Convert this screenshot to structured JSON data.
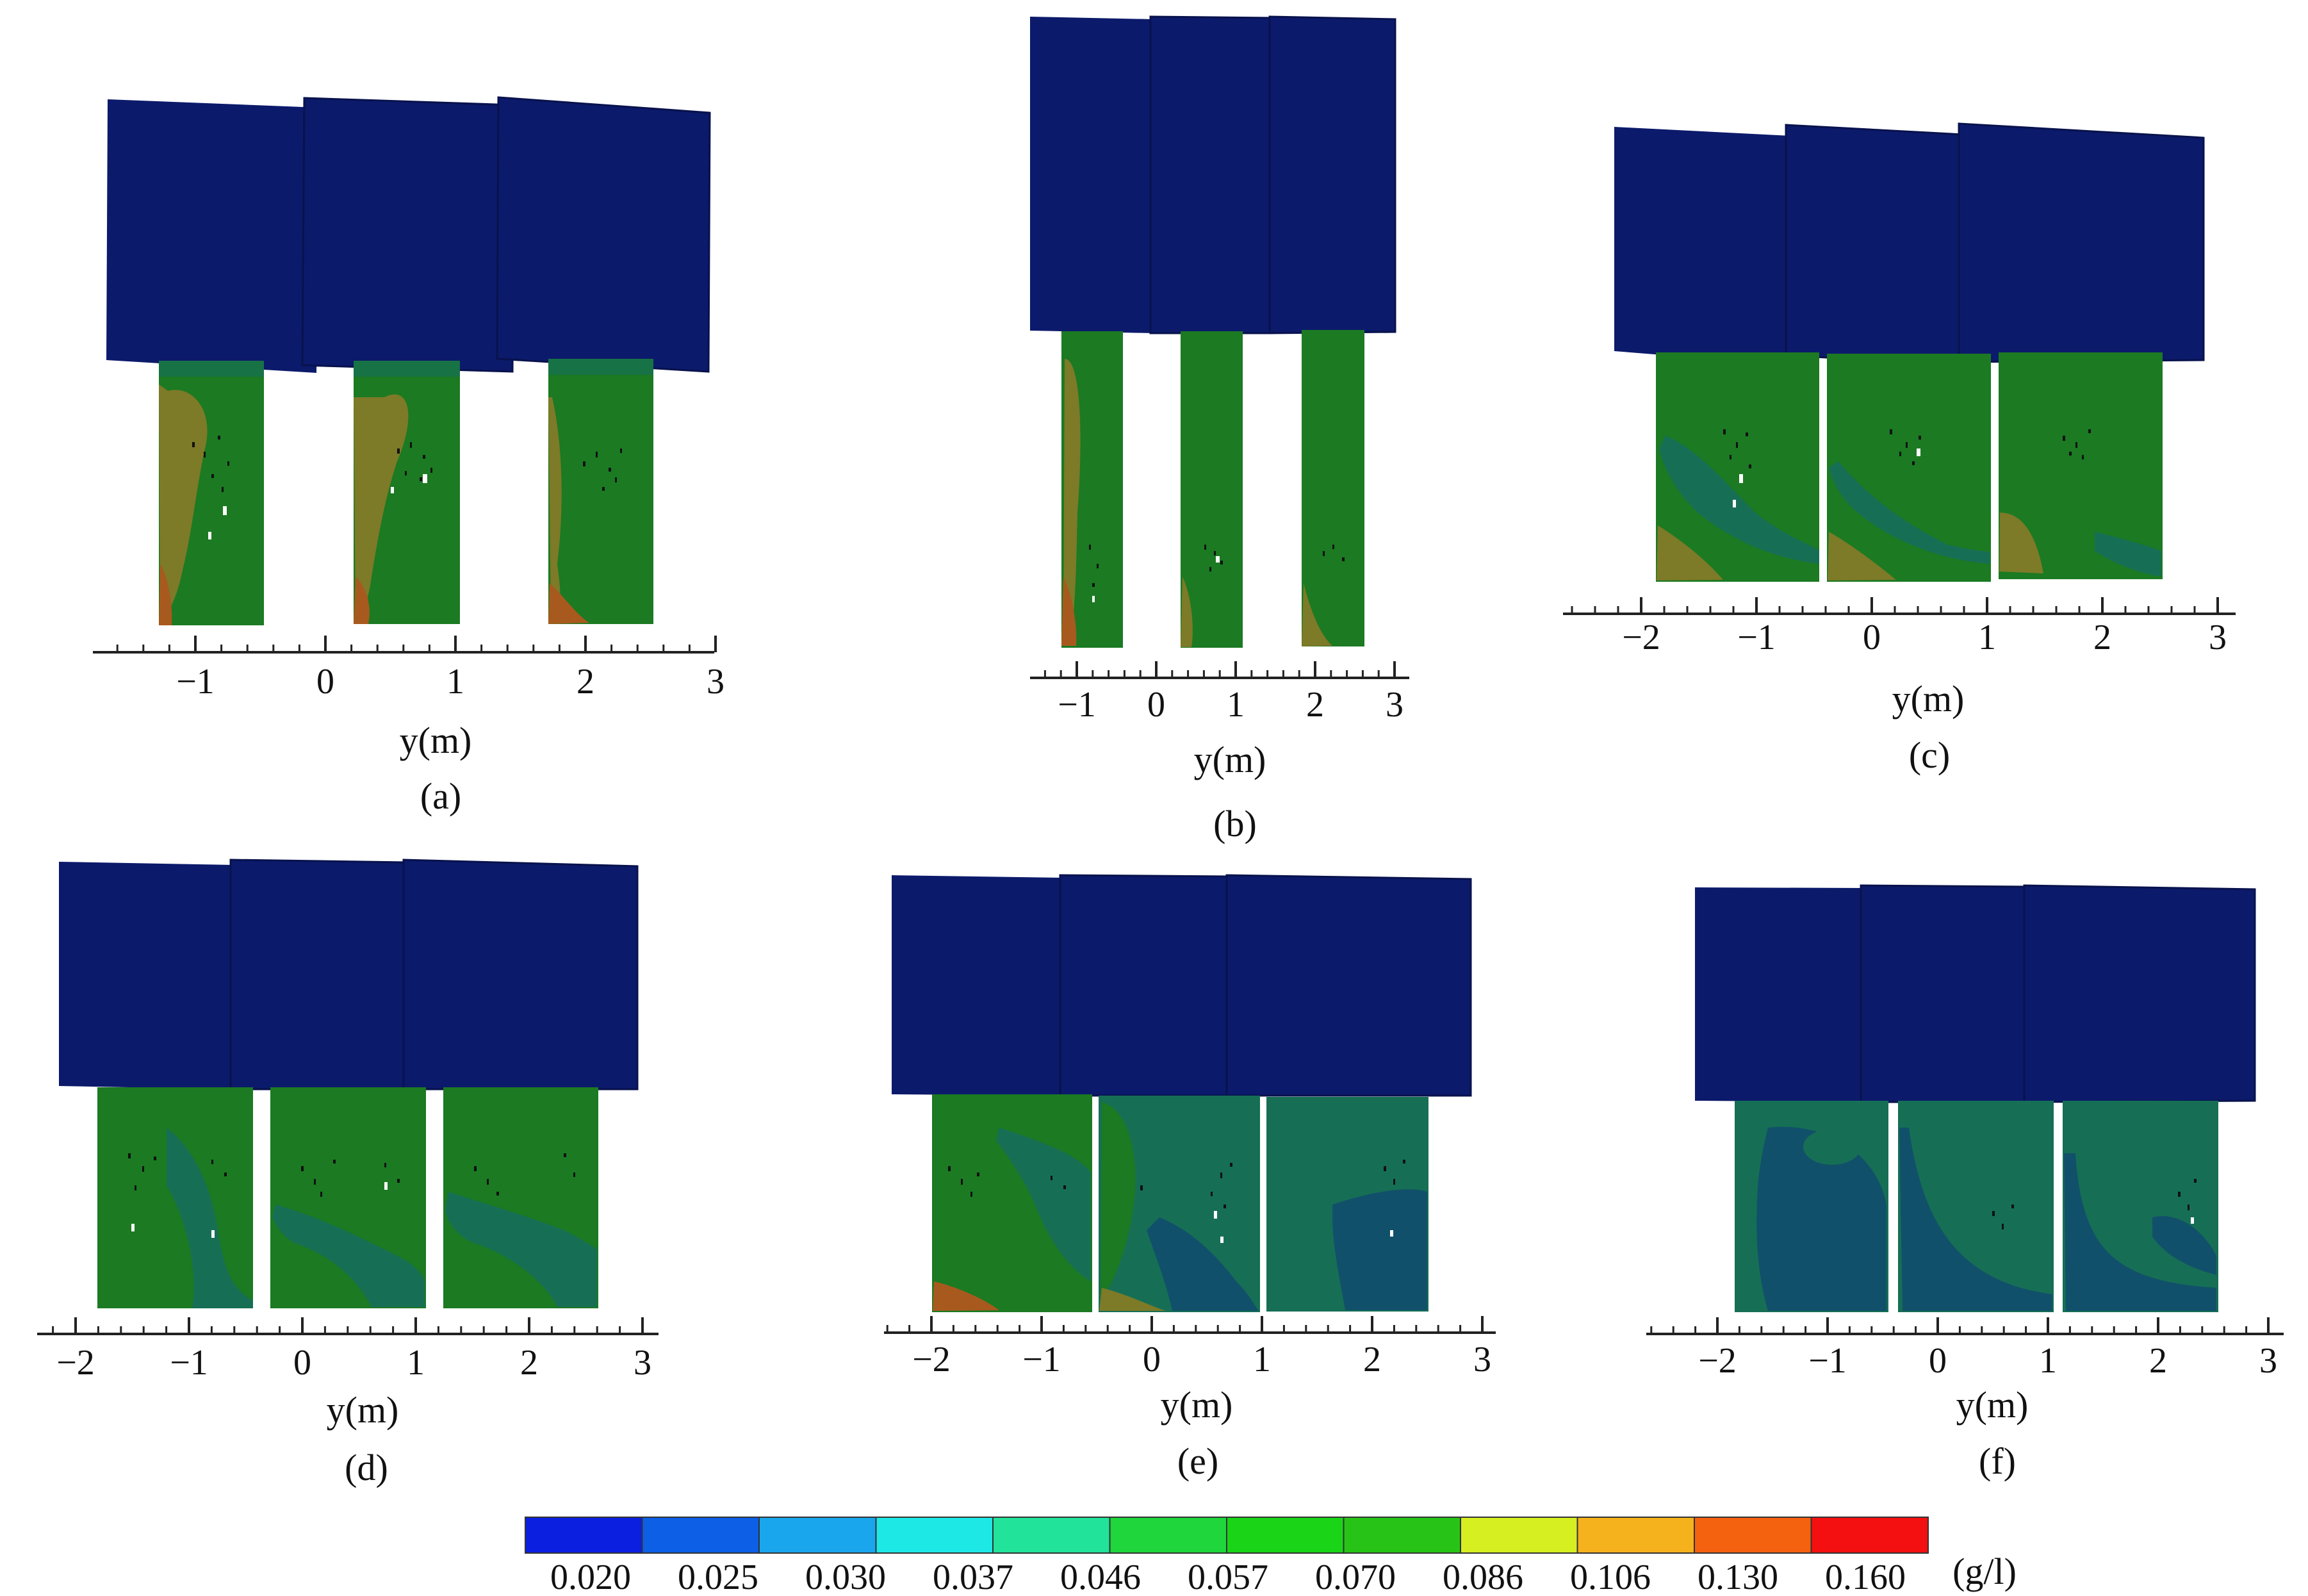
{
  "figure": {
    "panels": [
      {
        "id": "a",
        "label": "(a)",
        "axis_title": "y(m)",
        "ticks": [
          {
            "value": -1,
            "text": "−1"
          },
          {
            "value": 0,
            "text": "0"
          },
          {
            "value": 1,
            "text": "1"
          },
          {
            "value": 2,
            "text": "2"
          },
          {
            "value": 3,
            "text": "3"
          }
        ],
        "tubes": 3
      },
      {
        "id": "b",
        "label": "(b)",
        "axis_title": "y(m)",
        "ticks": [
          {
            "value": -1,
            "text": "−1"
          },
          {
            "value": 0,
            "text": "0"
          },
          {
            "value": 1,
            "text": "1"
          },
          {
            "value": 2,
            "text": "2"
          },
          {
            "value": 3,
            "text": "3"
          }
        ],
        "tubes": 3
      },
      {
        "id": "c",
        "label": "(c)",
        "axis_title": "y(m)",
        "ticks": [
          {
            "value": -2,
            "text": "−2"
          },
          {
            "value": -1,
            "text": "−1"
          },
          {
            "value": 0,
            "text": "0"
          },
          {
            "value": 1,
            "text": "1"
          },
          {
            "value": 2,
            "text": "2"
          },
          {
            "value": 3,
            "text": "3"
          }
        ],
        "tubes": 3
      },
      {
        "id": "d",
        "label": "(d)",
        "axis_title": "y(m)",
        "ticks": [
          {
            "value": -2,
            "text": "−2"
          },
          {
            "value": -1,
            "text": "−1"
          },
          {
            "value": 0,
            "text": "0"
          },
          {
            "value": 1,
            "text": "1"
          },
          {
            "value": 2,
            "text": "2"
          },
          {
            "value": 3,
            "text": "3"
          }
        ],
        "tubes": 3
      },
      {
        "id": "e",
        "label": "(e)",
        "axis_title": "y(m)",
        "ticks": [
          {
            "value": -2,
            "text": "−2"
          },
          {
            "value": -1,
            "text": "−1"
          },
          {
            "value": 0,
            "text": "0"
          },
          {
            "value": 1,
            "text": "1"
          },
          {
            "value": 2,
            "text": "2"
          },
          {
            "value": 3,
            "text": "3"
          }
        ],
        "tubes": 3
      },
      {
        "id": "f",
        "label": "(f)",
        "axis_title": "y(m)",
        "ticks": [
          {
            "value": -2,
            "text": "−2"
          },
          {
            "value": -1,
            "text": "−1"
          },
          {
            "value": 0,
            "text": "0"
          },
          {
            "value": 1,
            "text": "1"
          },
          {
            "value": 2,
            "text": "2"
          },
          {
            "value": 3,
            "text": "3"
          }
        ],
        "tubes": 3
      }
    ],
    "colorbar": {
      "unit": "(g/l)",
      "levels": [
        "0.020",
        "0.025",
        "0.030",
        "0.037",
        "0.046",
        "0.057",
        "0.070",
        "0.086",
        "0.106",
        "0.130",
        "0.160"
      ],
      "colors": [
        "#0a1fe0",
        "#0d5fe6",
        "#1aa6ec",
        "#1de8e6",
        "#22e39a",
        "#1fd63c",
        "#19d417",
        "#27c417",
        "#d6ef20",
        "#f6b21c",
        "#f4610f",
        "#f41010"
      ]
    },
    "colors": {
      "roof": "#0c1a6b",
      "field_green": "#1b7a22",
      "field_teal": "#166f55",
      "field_deep": "#11506a",
      "field_olive": "#7d7a28",
      "field_orange": "#a85a1e"
    }
  }
}
